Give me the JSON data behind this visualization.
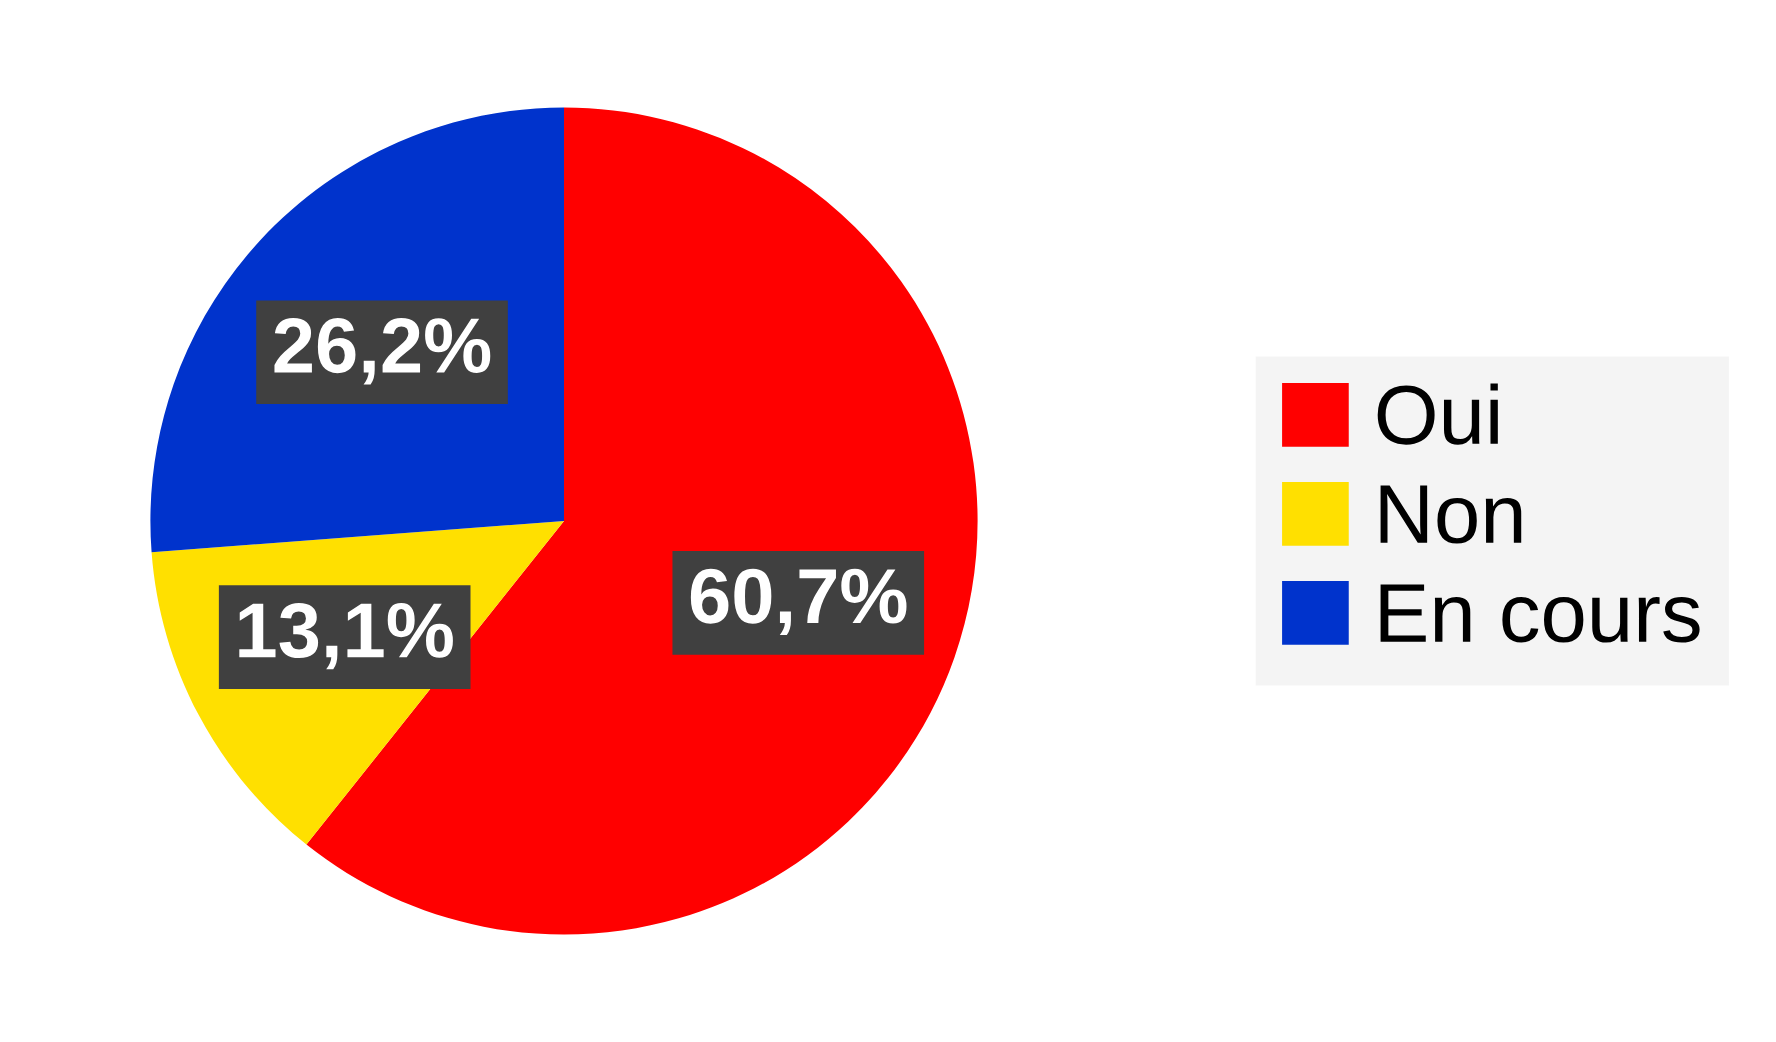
{
  "chart_data": {
    "type": "pie",
    "categories": [
      "Oui",
      "Non",
      "En cours"
    ],
    "values": [
      60.7,
      13.1,
      26.2
    ],
    "colors": [
      "#ff0000",
      "#ffe000",
      "#0033cc"
    ],
    "value_labels": [
      "60,7%",
      "13,1%",
      "26,2%"
    ],
    "legend": "right"
  }
}
